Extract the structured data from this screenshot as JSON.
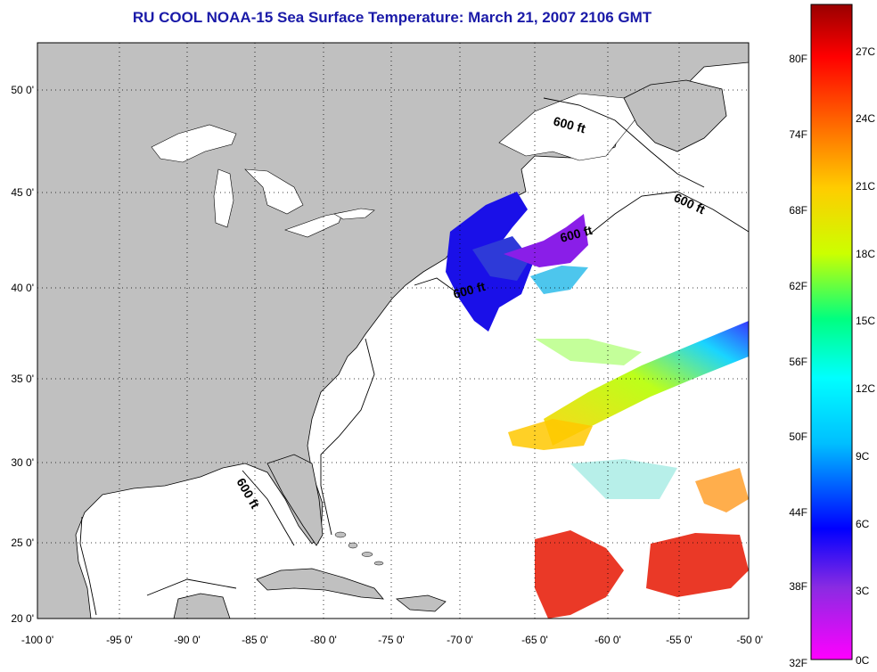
{
  "title": "RU COOL  NOAA-15  Sea Surface Temperature:  March 21, 2007 2106 GMT",
  "map": {
    "lon_range": [
      -100,
      -50
    ],
    "lat_range": [
      20,
      52.5
    ],
    "lon_ticks": [
      "-100 0'",
      "-95 0'",
      "-90 0'",
      "-85 0'",
      "-80 0'",
      "-75 0'",
      "-70 0'",
      "-65 0'",
      "-60 0'",
      "-55 0'",
      "-50 0'"
    ],
    "lat_ticks": [
      "50 0'",
      "45 0'",
      "40 0'",
      "35 0'",
      "30 0'",
      "25 0'",
      "20 0'"
    ],
    "contour_labels": [
      "600 ft",
      "600 ft",
      "600 ft",
      "600 ft",
      "600 ft"
    ],
    "colors": {
      "land": "#c0c0c0",
      "ocean": "#ffffff",
      "grid": "#000000"
    }
  },
  "colorbar": {
    "f_labels": [
      "80F",
      "74F",
      "68F",
      "62F",
      "56F",
      "50F",
      "44F",
      "38F",
      "32F"
    ],
    "c_labels": [
      "27C",
      "24C",
      "21C",
      "18C",
      "15C",
      "12C",
      "9C",
      "6C",
      "3C",
      "0C"
    ]
  }
}
